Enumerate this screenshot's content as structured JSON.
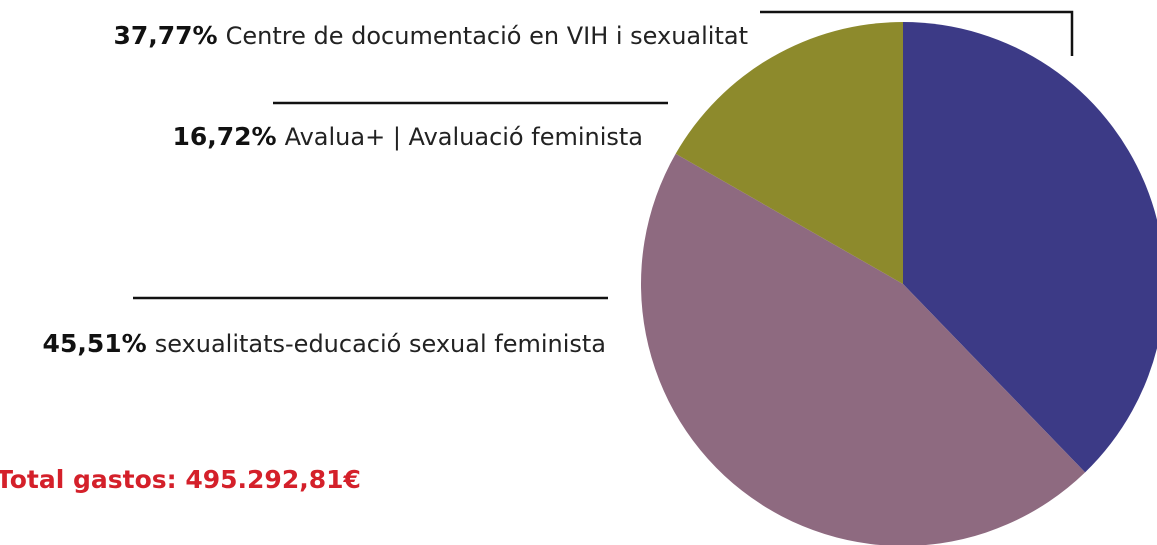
{
  "chart_data": {
    "type": "pie",
    "categories": [
      "Centre de documentació en VIH i sexualitat",
      "sexualitats-educació sexual feminista",
      "Avalua+ | Avaluació feminista"
    ],
    "values": [
      37.77,
      45.51,
      16.72
    ],
    "value_labels": [
      "37,77%",
      "45,51%",
      "16,72%"
    ],
    "colors": [
      "#3c3a86",
      "#8e6a80",
      "#8d8a2c"
    ],
    "annotation": "Total gastos: 495.292,81€"
  }
}
